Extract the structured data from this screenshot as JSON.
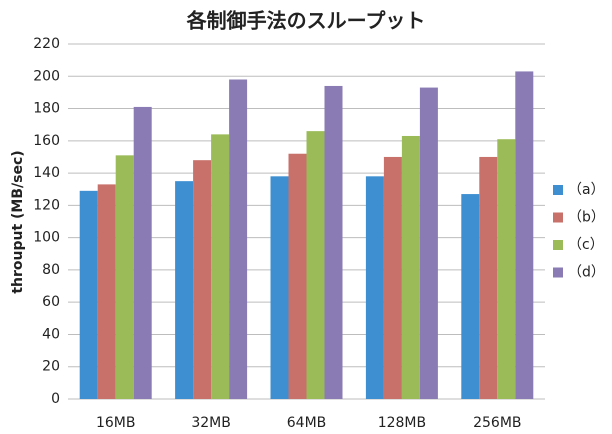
{
  "chart_data": {
    "type": "bar",
    "title": "各制御手法のスループット",
    "y_label": "throuput (MB/sec)",
    "categories": [
      "16MB",
      "32MB",
      "64MB",
      "128MB",
      "256MB"
    ],
    "series": [
      {
        "name": "（a）",
        "color": "#3d8fd1",
        "values": [
          129,
          135,
          138,
          138,
          127
        ]
      },
      {
        "name": "（b）",
        "color": "#c8706a",
        "values": [
          133,
          148,
          152,
          150,
          150
        ]
      },
      {
        "name": "（c）",
        "color": "#9bbb59",
        "values": [
          151,
          164,
          166,
          163,
          161
        ]
      },
      {
        "name": "（d）",
        "color": "#8a7bb5",
        "values": [
          181,
          198,
          194,
          193,
          203
        ]
      }
    ],
    "ylim": [
      0,
      220
    ],
    "yticks": [
      0,
      20,
      40,
      60,
      80,
      100,
      120,
      140,
      160,
      180,
      200,
      220
    ],
    "grid": true,
    "legend": "right"
  }
}
